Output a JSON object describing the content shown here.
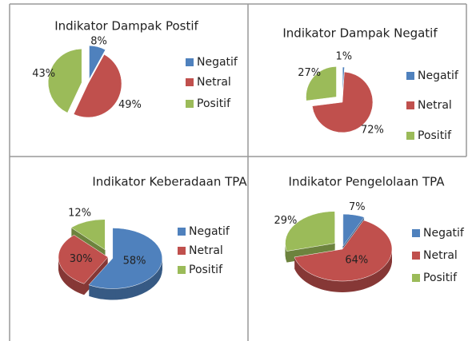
{
  "chart_data": [
    {
      "type": "pie",
      "title": "Indikator Dampak Postif",
      "categories": [
        "Negatif",
        "Netral",
        "Positif"
      ],
      "values": [
        8,
        49,
        43
      ],
      "value_labels": [
        "8%",
        "49%",
        "43%"
      ],
      "colors": [
        "#4f81bd",
        "#c0504d",
        "#9bbb59"
      ],
      "legend": "right"
    },
    {
      "type": "pie",
      "title": "Indikator Dampak Negatif",
      "categories": [
        "Negatif",
        "Netral",
        "Positif"
      ],
      "values": [
        1,
        72,
        27
      ],
      "value_labels": [
        "1%",
        "72%",
        "27%"
      ],
      "colors": [
        "#4f81bd",
        "#c0504d",
        "#9bbb59"
      ],
      "legend": "right"
    },
    {
      "type": "pie",
      "title": "Indikator Keberadaan TPA",
      "categories": [
        "Negatif",
        "Netral",
        "Positif"
      ],
      "values": [
        58,
        30,
        12
      ],
      "value_labels": [
        "58%",
        "30%",
        "12%"
      ],
      "colors": [
        "#4f81bd",
        "#c0504d",
        "#9bbb59"
      ],
      "legend": "right"
    },
    {
      "type": "pie",
      "title": "Indikator Pengelolaan TPA",
      "categories": [
        "Negatif",
        "Netral",
        "Positif"
      ],
      "values": [
        7,
        64,
        29
      ],
      "value_labels": [
        "7%",
        "64%",
        "29%"
      ],
      "colors": [
        "#4f81bd",
        "#c0504d",
        "#9bbb59"
      ],
      "legend": "right"
    }
  ]
}
